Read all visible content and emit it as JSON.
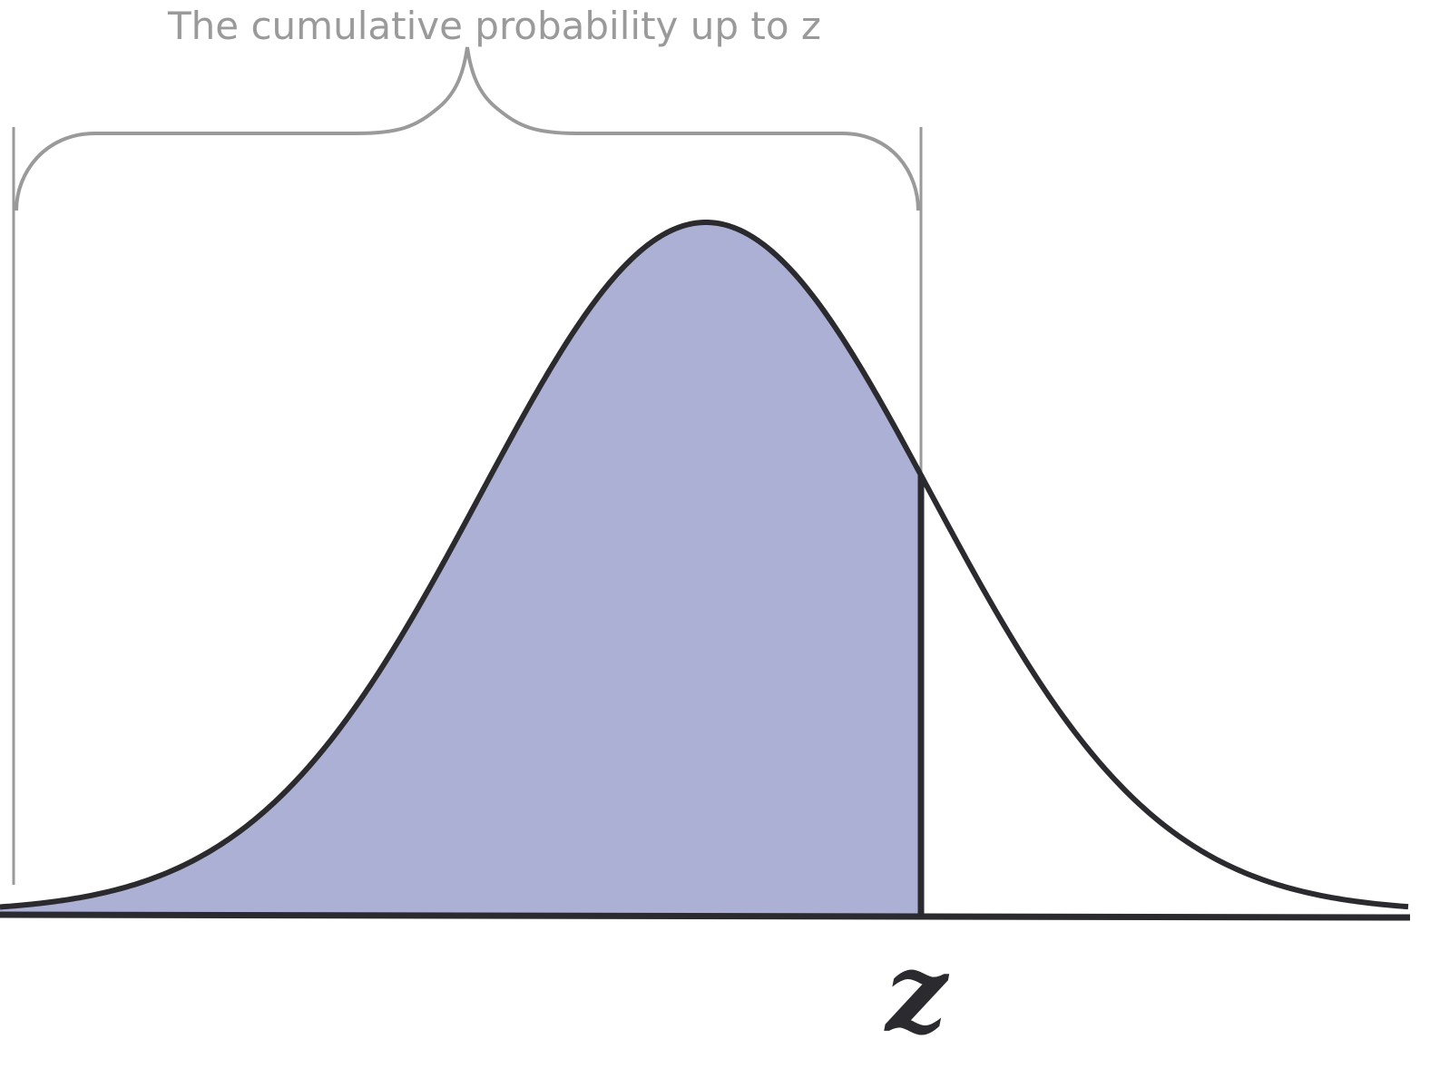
{
  "annotation": {
    "bracket_label": "The cumulative probability up to z"
  },
  "axis": {
    "marker_label": "z"
  },
  "colors": {
    "shaded_area": "#acb0d5",
    "curve": "#2b2b2f",
    "annotation": "#9a9a9a"
  }
}
